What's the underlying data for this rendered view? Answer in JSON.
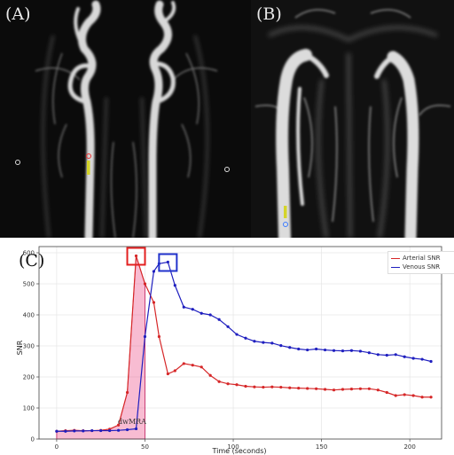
{
  "panels": {
    "a_label": "(A)",
    "b_label": "(B)",
    "c_label": "(C)"
  },
  "chart_data": {
    "type": "line",
    "xlabel": "Time (seconds)",
    "ylabel": "SNR",
    "xlim": [
      -10,
      218
    ],
    "ylim": [
      0,
      620
    ],
    "xticks": [
      0,
      50,
      100,
      150,
      200
    ],
    "yticks": [
      0,
      100,
      200,
      300,
      400,
      500,
      600
    ],
    "grid": true,
    "legend_position": "top-right",
    "annotation": "dwMRA",
    "series": [
      {
        "name": "Arterial SNR",
        "color": "#d62728",
        "x": [
          0,
          5,
          10,
          15,
          20,
          25,
          30,
          35,
          40,
          45,
          50,
          55,
          58,
          63,
          67,
          72,
          77,
          82,
          87,
          92,
          97,
          102,
          107,
          112,
          117,
          122,
          127,
          132,
          137,
          142,
          147,
          152,
          157,
          162,
          167,
          172,
          177,
          182,
          187,
          192,
          197,
          202,
          207,
          212
        ],
        "values": [
          25,
          27,
          28,
          27,
          27,
          28,
          32,
          45,
          150,
          590,
          500,
          440,
          330,
          210,
          220,
          243,
          238,
          232,
          205,
          185,
          178,
          175,
          170,
          168,
          167,
          168,
          167,
          165,
          164,
          163,
          162,
          160,
          158,
          160,
          161,
          162,
          162,
          158,
          150,
          140,
          143,
          140,
          135,
          135
        ]
      },
      {
        "name": "Venous SNR",
        "color": "#1f1fbf",
        "x": [
          0,
          5,
          10,
          15,
          20,
          25,
          30,
          35,
          40,
          45,
          50,
          55,
          58,
          63,
          67,
          72,
          77,
          82,
          87,
          92,
          97,
          102,
          107,
          112,
          117,
          122,
          127,
          132,
          137,
          142,
          147,
          152,
          157,
          162,
          167,
          172,
          177,
          182,
          187,
          192,
          197,
          202,
          207,
          212
        ],
        "values": [
          25,
          25,
          26,
          26,
          27,
          27,
          27,
          28,
          30,
          33,
          330,
          540,
          565,
          570,
          495,
          425,
          418,
          405,
          400,
          385,
          362,
          337,
          325,
          315,
          311,
          309,
          301,
          295,
          290,
          287,
          290,
          287,
          285,
          284,
          285,
          283,
          278,
          272,
          270,
          272,
          265,
          260,
          257,
          250
        ]
      }
    ]
  }
}
